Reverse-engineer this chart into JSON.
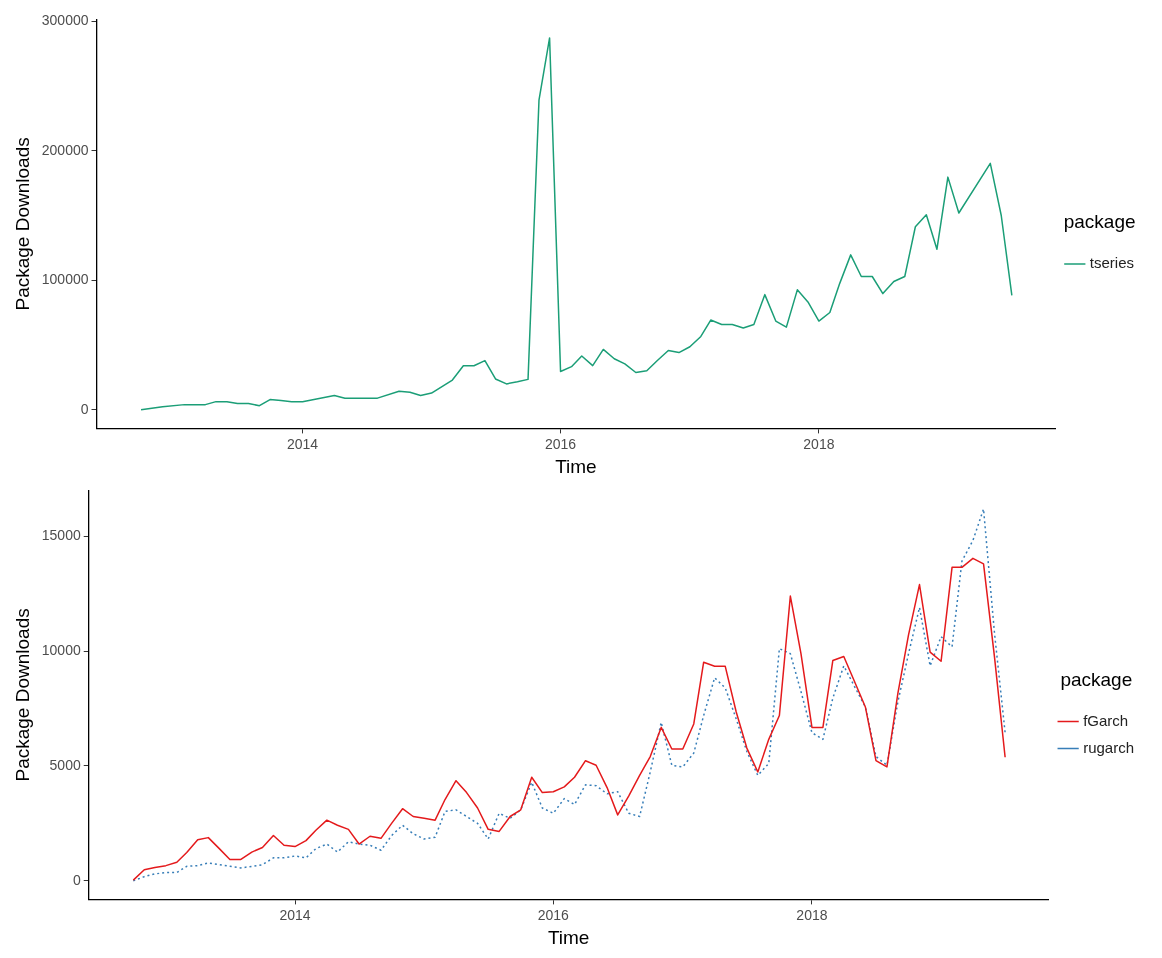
{
  "chart_data": [
    {
      "type": "line",
      "xlabel": "Time",
      "ylabel": "Package Downloads",
      "legend_title": "package",
      "legend": "right",
      "grid": false,
      "marker": "none",
      "xlim": [
        "2012-05-28",
        "2019-11-01"
      ],
      "xticks": [
        {
          "value": "2014-01-01",
          "label": "2014"
        },
        {
          "value": "2016-01-01",
          "label": "2016"
        },
        {
          "value": "2018-01-01",
          "label": "2018"
        }
      ],
      "ylim": [
        -14350,
        301350
      ],
      "yticks": [
        0,
        100000,
        200000,
        300000
      ],
      "series": [
        {
          "name": "tseries",
          "color": "#1b9e77",
          "line_style": "solid",
          "x": [
            "2012-10",
            "2012-12",
            "2013-02",
            "2013-04",
            "2013-05",
            "2013-06",
            "2013-07",
            "2013-08",
            "2013-09",
            "2013-10",
            "2013-11",
            "2013-12",
            "2014-01",
            "2014-04",
            "2014-05",
            "2014-08",
            "2014-10",
            "2014-11",
            "2014-12",
            "2015-01",
            "2015-03",
            "2015-04",
            "2015-05",
            "2015-06",
            "2015-07",
            "2015-08",
            "2015-09",
            "2015-10",
            "2015-11",
            "2015-12",
            "2016-01",
            "2016-02",
            "2016-03",
            "2016-04",
            "2016-05",
            "2016-06",
            "2016-07",
            "2016-08",
            "2016-09",
            "2016-10",
            "2016-11",
            "2016-12",
            "2017-01",
            "2017-02",
            "2017-03",
            "2017-04",
            "2017-05",
            "2017-06",
            "2017-07",
            "2017-08",
            "2017-09",
            "2017-10",
            "2017-11",
            "2017-12",
            "2018-01",
            "2018-02",
            "2018-03",
            "2018-04",
            "2018-05",
            "2018-06",
            "2018-07",
            "2018-08",
            "2018-09",
            "2018-10",
            "2018-11",
            "2018-12",
            "2019-01",
            "2019-02",
            "2019-05",
            "2019-06",
            "2019-07"
          ],
          "values": [
            0,
            2400,
            4000,
            4000,
            6300,
            6300,
            4800,
            4800,
            3200,
            7900,
            7100,
            6300,
            6300,
            11000,
            9000,
            9000,
            14300,
            13500,
            11000,
            12900,
            23000,
            34000,
            34000,
            38000,
            23800,
            20000,
            21600,
            23500,
            239000,
            287000,
            29600,
            33300,
            41500,
            34100,
            46600,
            39400,
            35400,
            28800,
            30200,
            38100,
            45800,
            44200,
            48700,
            56600,
            69300,
            65900,
            65900,
            63200,
            65900,
            88900,
            68500,
            63800,
            92600,
            83300,
            68500,
            75100,
            97600,
            119600,
            102900,
            102900,
            89700,
            99000,
            102900,
            141300,
            150600,
            124000,
            179600,
            151900,
            190200,
            150000,
            88300
          ]
        }
      ]
    },
    {
      "type": "line",
      "xlabel": "Time",
      "ylabel": "Package Downloads",
      "legend_title": "package",
      "legend": "right",
      "grid": false,
      "marker": "none",
      "xlim": [
        "2012-05-28",
        "2019-11-01"
      ],
      "xticks": [
        {
          "value": "2014-01-01",
          "label": "2014"
        },
        {
          "value": "2016-01-01",
          "label": "2016"
        },
        {
          "value": "2018-01-01",
          "label": "2018"
        }
      ],
      "ylim": [
        -810,
        17000
      ],
      "yticks": [
        0,
        5000,
        10000,
        15000
      ],
      "x": [
        "2012-10",
        "2012-11",
        "2012-12",
        "2013-01",
        "2013-02",
        "2013-03",
        "2013-04",
        "2013-05",
        "2013-06",
        "2013-07",
        "2013-08",
        "2013-09",
        "2013-10",
        "2013-11",
        "2013-12",
        "2014-01",
        "2014-02",
        "2014-03",
        "2014-04",
        "2014-05",
        "2014-06",
        "2014-07",
        "2014-08",
        "2014-09",
        "2014-10",
        "2014-11",
        "2014-12",
        "2015-01",
        "2015-02",
        "2015-03",
        "2015-04",
        "2015-05",
        "2015-06",
        "2015-07",
        "2015-08",
        "2015-09",
        "2015-10",
        "2015-11",
        "2015-12",
        "2016-01",
        "2016-02",
        "2016-03",
        "2016-04",
        "2016-05",
        "2016-06",
        "2016-07",
        "2016-08",
        "2016-09",
        "2016-10",
        "2016-11",
        "2016-12",
        "2017-01",
        "2017-02",
        "2017-03",
        "2017-04",
        "2017-05",
        "2017-06",
        "2017-07",
        "2017-08",
        "2017-09",
        "2017-10",
        "2017-11",
        "2017-12",
        "2018-01",
        "2018-02",
        "2018-03",
        "2018-04",
        "2018-05",
        "2018-06",
        "2018-07",
        "2018-08",
        "2018-09",
        "2018-10",
        "2018-11",
        "2018-12",
        "2019-01",
        "2019-02",
        "2019-03",
        "2019-04",
        "2019-05",
        "2019-06",
        "2019-07"
      ],
      "series": [
        {
          "name": "fGarch",
          "color": "#e41a1c",
          "line_style": "solid",
          "values": [
            30,
            480,
            580,
            660,
            810,
            1230,
            1790,
            1880,
            1400,
            930,
            930,
            1250,
            1450,
            1970,
            1550,
            1490,
            1750,
            2200,
            2640,
            2420,
            2240,
            1600,
            1940,
            1850,
            2500,
            3140,
            2800,
            2720,
            2640,
            3540,
            4360,
            3840,
            3170,
            2240,
            2150,
            2800,
            3090,
            4510,
            3840,
            3880,
            4090,
            4510,
            5230,
            5030,
            4060,
            2870,
            3690,
            4590,
            5410,
            6680,
            5740,
            5740,
            6830,
            9520,
            9340,
            9340,
            7350,
            5780,
            4740,
            6160,
            7200,
            12400,
            9890,
            6680,
            6680,
            9590,
            9770,
            8690,
            7570,
            5230,
            4960,
            8170,
            10710,
            12900,
            9960,
            9560,
            13650,
            13650,
            14040,
            13800,
            9740,
            5380
          ]
        },
        {
          "name": "rugarch",
          "color": "#377eb8",
          "line_style": "dotted",
          "values": [
            0,
            180,
            300,
            360,
            360,
            630,
            660,
            780,
            700,
            630,
            560,
            630,
            700,
            1000,
            1000,
            1080,
            1000,
            1400,
            1600,
            1250,
            1700,
            1600,
            1550,
            1330,
            1970,
            2420,
            2050,
            1820,
            1900,
            3020,
            3090,
            2800,
            2500,
            1820,
            2940,
            2720,
            3090,
            4290,
            3170,
            2940,
            3580,
            3320,
            4180,
            4140,
            3790,
            3880,
            2940,
            2800,
            4740,
            6900,
            5030,
            4960,
            5560,
            7200,
            8840,
            8400,
            7050,
            5630,
            4590,
            5110,
            10110,
            9890,
            8240,
            6450,
            6160,
            7950,
            9360,
            8470,
            7570,
            5410,
            5030,
            7800,
            9890,
            11900,
            9360,
            10630,
            10190,
            13920,
            14820,
            16190,
            10780,
            6450
          ]
        }
      ]
    }
  ]
}
